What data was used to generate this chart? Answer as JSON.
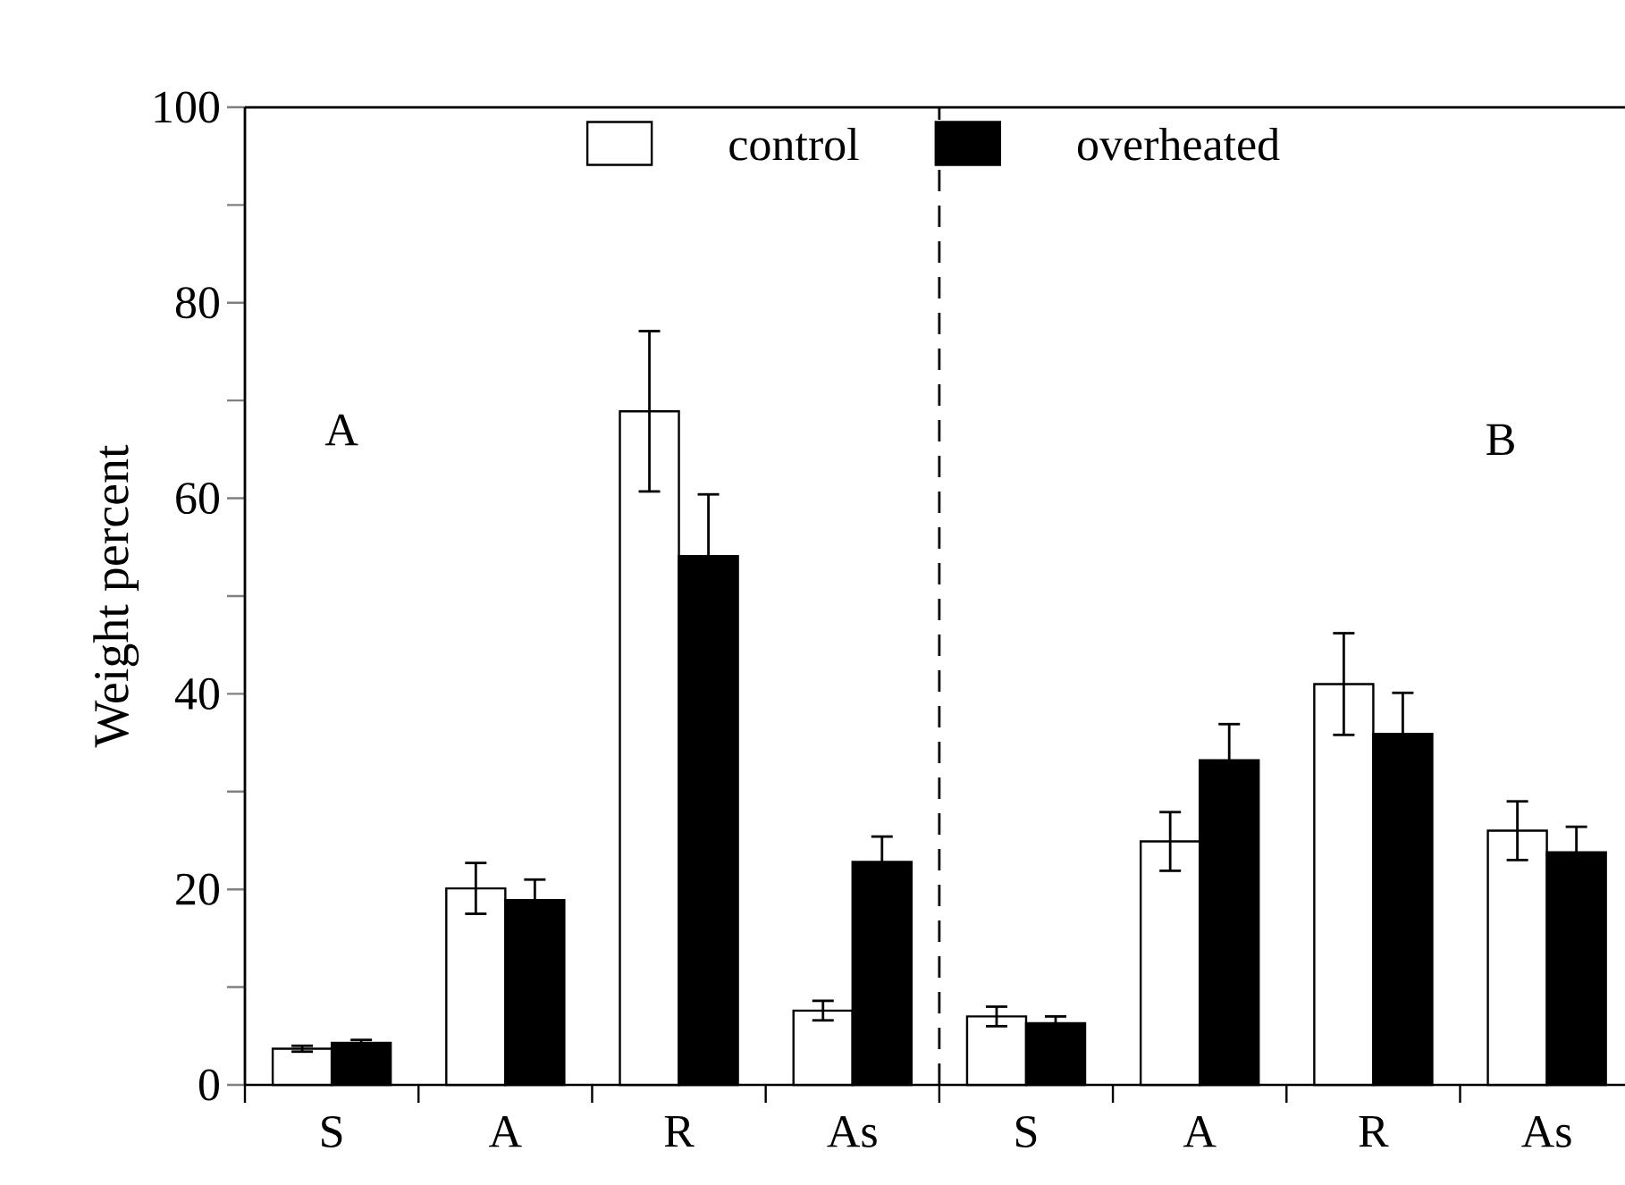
{
  "chart_data": {
    "type": "bar",
    "ylabel": "Weight percent",
    "categories": [
      "S",
      "A",
      "R",
      "As",
      "S",
      "A",
      "R",
      "As"
    ],
    "series": [
      {
        "name": "control",
        "color": "#ffffff",
        "values": [
          3.7,
          20.1,
          68.9,
          7.6,
          7.0,
          24.9,
          41.0,
          26.0
        ],
        "errors": [
          0.3,
          2.6,
          8.2,
          1.0,
          1.0,
          3.0,
          5.2,
          3.0
        ]
      },
      {
        "name": "overheated",
        "color": "#000000",
        "values": [
          4.3,
          18.9,
          54.1,
          22.8,
          6.3,
          33.2,
          35.9,
          23.8
        ],
        "errors": [
          0.3,
          2.1,
          6.3,
          2.6,
          0.7,
          3.7,
          4.2,
          2.6
        ]
      }
    ],
    "ylim": [
      0,
      100
    ],
    "yticks": [
      0,
      {
        "value": 10,
        "label": null
      },
      20,
      {
        "value": 30,
        "label": null
      },
      40,
      {
        "value": 50,
        "label": null
      },
      60,
      {
        "value": 70,
        "label": null
      },
      80,
      {
        "value": 90,
        "label": null
      },
      100
    ],
    "annotations": [
      "A",
      "B"
    ],
    "legend": "top"
  }
}
